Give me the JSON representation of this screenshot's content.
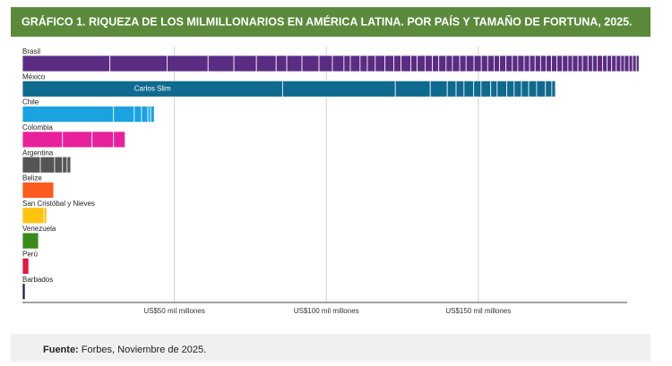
{
  "chart_data": {
    "type": "segmented_bar",
    "title": "GRÁFICO 1. RIQUEZA DE LOS MILMILLONARIOS EN AMÉRICA LATINA. POR PAÍS Y TAMAÑO DE FORTUNA, 2025.",
    "categories": [
      "Brasil",
      "México",
      "Chile",
      "Colombia",
      "Argentina",
      "Belize",
      "San Cristóbal y Nieves",
      "Venezuela",
      "Perú",
      "Barbados"
    ],
    "colors": [
      "#5b2c83",
      "#0e6a8e",
      "#1aa3e0",
      "#e8219b",
      "#555555",
      "#ff5a1f",
      "#ffc20e",
      "#3a8a1a",
      "#e5173f",
      "#1b1f4f"
    ],
    "segments": [
      [
        28.8,
        18.8,
        13.5,
        8.5,
        7.4,
        6.5,
        3.5,
        5,
        5.6,
        4.4,
        3.8,
        2.1,
        3.2,
        2.4,
        2.6,
        3.2,
        2.9,
        2.4,
        3.2,
        2.1,
        2.6,
        2.4,
        2.1,
        2.4,
        2.1,
        2.4,
        2.1,
        2.6,
        2.4,
        2.1,
        2.1,
        1.8,
        2.1,
        2.1,
        1.8,
        2.1,
        1.8,
        1.8,
        1.8,
        1.8,
        1.8,
        1.8,
        1.8,
        1.8,
        1.5,
        1.8,
        1.5,
        1.8,
        1.5,
        1.5,
        1.8,
        1.5,
        1.5,
        1.5,
        1.5,
        1.2,
        1.5,
        1.2,
        1.2,
        0.9
      ],
      [
        85.6,
        37.1,
        11.5,
        5.6,
        2.9,
        2.6,
        3.2,
        2.4,
        3.2,
        2.1,
        3.2,
        2.4,
        2.4,
        2.4,
        2.6,
        2.9,
        2.1,
        1.2
      ],
      [
        30,
        6.8,
        2.4,
        2.1,
        0.9,
        1.2
      ],
      [
        13.2,
        9.7,
        7.1,
        3.8
      ],
      [
        5.9,
        4.7,
        2.6,
        1.5,
        1.2
      ],
      [
        10.3
      ],
      [
        7.1,
        0.9
      ],
      [
        5.3
      ],
      [
        2.1
      ],
      [
        0.9
      ]
    ],
    "annotation": "Carlos Slim",
    "xlim": [
      0,
      199
    ],
    "xticks": [
      {
        "value": 50,
        "label": "US$50 mil millones"
      },
      {
        "value": 100,
        "label": "US$100 mil millones"
      },
      {
        "value": 150,
        "label": "US$150 mil millones"
      }
    ],
    "grid": true
  },
  "source": {
    "label": "Fuente:",
    "text": "Forbes, Noviembre de 2025."
  }
}
